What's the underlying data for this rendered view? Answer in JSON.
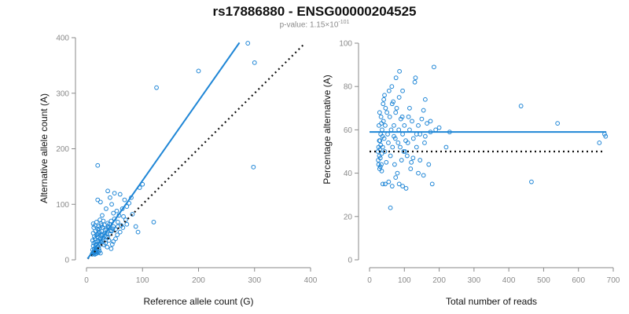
{
  "title": "rs17886880 - ENSG00000204525",
  "subtitle": {
    "prefix": "p-value: 1.15×10",
    "exponent": "-101"
  },
  "colors": {
    "points": "#1f86d6",
    "fit_line": "#1f86d6",
    "reference_line": "#111111",
    "axis": "#8a8a8a"
  },
  "chart_data": [
    {
      "type": "scatter",
      "xlabel": "Reference allele count (G)",
      "ylabel": "Alternative allele count (A)",
      "xlim": [
        0,
        400
      ],
      "ylim": [
        0,
        400
      ],
      "xticks": [
        0,
        100,
        200,
        300,
        400
      ],
      "yticks": [
        0,
        100,
        200,
        300,
        400
      ],
      "grid": false,
      "points": [
        [
          12,
          12
        ],
        [
          13,
          15
        ],
        [
          11,
          18
        ],
        [
          15,
          14
        ],
        [
          14,
          20
        ],
        [
          16,
          22
        ],
        [
          12,
          25
        ],
        [
          18,
          17
        ],
        [
          20,
          24
        ],
        [
          13,
          30
        ],
        [
          17,
          28
        ],
        [
          22,
          20
        ],
        [
          11,
          35
        ],
        [
          15,
          38
        ],
        [
          19,
          33
        ],
        [
          24,
          27
        ],
        [
          14,
          42
        ],
        [
          21,
          40
        ],
        [
          26,
          32
        ],
        [
          12,
          48
        ],
        [
          18,
          45
        ],
        [
          25,
          38
        ],
        [
          28,
          44
        ],
        [
          16,
          52
        ],
        [
          23,
          50
        ],
        [
          30,
          36
        ],
        [
          35,
          42
        ],
        [
          13,
          58
        ],
        [
          20,
          55
        ],
        [
          27,
          52
        ],
        [
          33,
          48
        ],
        [
          38,
          40
        ],
        [
          15,
          62
        ],
        [
          22,
          60
        ],
        [
          29,
          58
        ],
        [
          36,
          55
        ],
        [
          42,
          47
        ],
        [
          18,
          68
        ],
        [
          26,
          65
        ],
        [
          32,
          63
        ],
        [
          40,
          58
        ],
        [
          45,
          52
        ],
        [
          12,
          65
        ],
        [
          24,
          72
        ],
        [
          30,
          70
        ],
        [
          38,
          66
        ],
        [
          48,
          60
        ],
        [
          52,
          55
        ],
        [
          20,
          46
        ],
        [
          34,
          30
        ],
        [
          40,
          35
        ],
        [
          46,
          28
        ],
        [
          55,
          45
        ],
        [
          60,
          50
        ],
        [
          44,
          70
        ],
        [
          50,
          74
        ],
        [
          56,
          68
        ],
        [
          62,
          62
        ],
        [
          58,
          80
        ],
        [
          66,
          78
        ],
        [
          70,
          72
        ],
        [
          48,
          84
        ],
        [
          54,
          88
        ],
        [
          64,
          92
        ],
        [
          72,
          96
        ],
        [
          76,
          102
        ],
        [
          68,
          108
        ],
        [
          80,
          112
        ],
        [
          42,
          112
        ],
        [
          50,
          120
        ],
        [
          60,
          118
        ],
        [
          95,
          130
        ],
        [
          100,
          136
        ],
        [
          38,
          124
        ],
        [
          45,
          100
        ],
        [
          35,
          92
        ],
        [
          28,
          80
        ],
        [
          20,
          108
        ],
        [
          25,
          104
        ],
        [
          82,
          82
        ],
        [
          88,
          60
        ],
        [
          92,
          50
        ],
        [
          120,
          68
        ],
        [
          18,
          18
        ],
        [
          15,
          10
        ],
        [
          14,
          12
        ],
        [
          16,
          14
        ],
        [
          17,
          11
        ],
        [
          19,
          15
        ],
        [
          21,
          13
        ],
        [
          23,
          16
        ],
        [
          25,
          12
        ],
        [
          10,
          10
        ],
        [
          11,
          12
        ],
        [
          13,
          13
        ],
        [
          22,
          33
        ],
        [
          26,
          44
        ],
        [
          31,
          27
        ],
        [
          37,
          23
        ],
        [
          44,
          20
        ],
        [
          48,
          33
        ],
        [
          52,
          38
        ],
        [
          16,
          32
        ],
        [
          19,
          42
        ],
        [
          21,
          48
        ],
        [
          23,
          56
        ],
        [
          27,
          62
        ],
        [
          29,
          46
        ],
        [
          33,
          54
        ],
        [
          39,
          60
        ],
        [
          41,
          64
        ],
        [
          56,
          60
        ],
        [
          65,
          58
        ],
        [
          72,
          64
        ],
        [
          30,
          40
        ],
        [
          28,
          33
        ],
        [
          24,
          30
        ],
        [
          36,
          47
        ],
        [
          43,
          52
        ],
        [
          47,
          56
        ],
        [
          20,
          170
        ],
        [
          125,
          310
        ],
        [
          200,
          340
        ],
        [
          288,
          390
        ],
        [
          300,
          355
        ],
        [
          298,
          167
        ]
      ],
      "fit_line": [
        [
          2,
          2
        ],
        [
          273,
          391
        ]
      ],
      "reference_line": [
        [
          2,
          2
        ],
        [
          390,
          390
        ]
      ]
    },
    {
      "type": "scatter",
      "xlabel": "Total number of reads",
      "ylabel": "Percentage alternative (A)",
      "xlim": [
        0,
        700
      ],
      "ylim": [
        0,
        100
      ],
      "xticks": [
        0,
        100,
        200,
        300,
        400,
        500,
        600,
        700
      ],
      "yticks": [
        0,
        20,
        40,
        60,
        80,
        100
      ],
      "grid": false,
      "points": [
        [
          24,
          50
        ],
        [
          26,
          52
        ],
        [
          28,
          48
        ],
        [
          30,
          55
        ],
        [
          25,
          46
        ],
        [
          32,
          58
        ],
        [
          34,
          44
        ],
        [
          27,
          62
        ],
        [
          29,
          42
        ],
        [
          36,
          60
        ],
        [
          38,
          52
        ],
        [
          31,
          47
        ],
        [
          33,
          66
        ],
        [
          35,
          41
        ],
        [
          40,
          64
        ],
        [
          42,
          56
        ],
        [
          44,
          50
        ],
        [
          46,
          70
        ],
        [
          48,
          45
        ],
        [
          50,
          68
        ],
        [
          39,
          72
        ],
        [
          41,
          74
        ],
        [
          43,
          76
        ],
        [
          45,
          62
        ],
        [
          52,
          58
        ],
        [
          54,
          54
        ],
        [
          56,
          78
        ],
        [
          58,
          66
        ],
        [
          60,
          48
        ],
        [
          62,
          60
        ],
        [
          64,
          80
        ],
        [
          66,
          52
        ],
        [
          68,
          73
        ],
        [
          70,
          62
        ],
        [
          72,
          44
        ],
        [
          74,
          56
        ],
        [
          76,
          84
        ],
        [
          78,
          70
        ],
        [
          80,
          40
        ],
        [
          84,
          60
        ],
        [
          86,
          87
        ],
        [
          88,
          52
        ],
        [
          90,
          65
        ],
        [
          92,
          46
        ],
        [
          95,
          58
        ],
        [
          98,
          50
        ],
        [
          100,
          62
        ],
        [
          104,
          55
        ],
        [
          108,
          48
        ],
        [
          112,
          66
        ],
        [
          115,
          60
        ],
        [
          118,
          42
        ],
        [
          122,
          64
        ],
        [
          126,
          56
        ],
        [
          130,
          82
        ],
        [
          132,
          84
        ],
        [
          135,
          52
        ],
        [
          140,
          62
        ],
        [
          145,
          58
        ],
        [
          150,
          65
        ],
        [
          155,
          69
        ],
        [
          158,
          54
        ],
        [
          160,
          74
        ],
        [
          165,
          63
        ],
        [
          170,
          44
        ],
        [
          175,
          59
        ],
        [
          180,
          35
        ],
        [
          185,
          89
        ],
        [
          190,
          60
        ],
        [
          200,
          61
        ],
        [
          220,
          52
        ],
        [
          230,
          59
        ],
        [
          28,
          55
        ],
        [
          30,
          51
        ],
        [
          32,
          53
        ],
        [
          35,
          49
        ],
        [
          37,
          57
        ],
        [
          26,
          44
        ],
        [
          29,
          68
        ],
        [
          31,
          43
        ],
        [
          34,
          63
        ],
        [
          38,
          35
        ],
        [
          45,
          35
        ],
        [
          55,
          36
        ],
        [
          65,
          34
        ],
        [
          75,
          38
        ],
        [
          85,
          35
        ],
        [
          95,
          34
        ],
        [
          105,
          33
        ],
        [
          120,
          45
        ],
        [
          140,
          40
        ],
        [
          155,
          39
        ],
        [
          60,
          24
        ],
        [
          70,
          57
        ],
        [
          82,
          54
        ],
        [
          94,
          66
        ],
        [
          102,
          50
        ],
        [
          110,
          54
        ],
        [
          125,
          47
        ],
        [
          135,
          58
        ],
        [
          145,
          46
        ],
        [
          160,
          57
        ],
        [
          175,
          64
        ],
        [
          115,
          70
        ],
        [
          95,
          78
        ],
        [
          85,
          75
        ],
        [
          75,
          68
        ],
        [
          65,
          72
        ],
        [
          435,
          71
        ],
        [
          465,
          36
        ],
        [
          540,
          63
        ],
        [
          660,
          54
        ],
        [
          675,
          58
        ],
        [
          678,
          57
        ]
      ],
      "fit_line": [
        [
          0,
          59
        ],
        [
          680,
          59
        ]
      ],
      "reference_line": [
        [
          0,
          50
        ],
        [
          675,
          50
        ]
      ]
    }
  ]
}
